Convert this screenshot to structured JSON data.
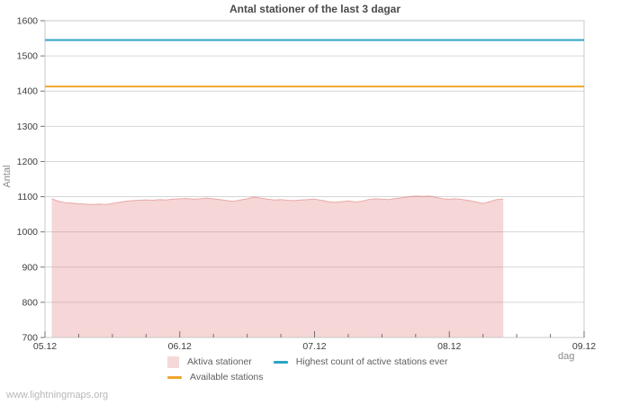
{
  "page": {
    "watermark": "www.lightningmaps.org"
  },
  "chart_data": {
    "type": "area",
    "title": "Antal stationer of the last 3 dagar",
    "xlabel": "dag",
    "ylabel": "Antal",
    "ylim": [
      700,
      1600
    ],
    "y_tick_step": 100,
    "xlim_days": [
      5,
      9
    ],
    "x_minor_tick_step_days": 0.25,
    "x_ticks": [
      {
        "day": 5,
        "label": "05.12"
      },
      {
        "day": 6,
        "label": "06.12"
      },
      {
        "day": 7,
        "label": "07.12"
      },
      {
        "day": 8,
        "label": "08.12"
      },
      {
        "day": 9,
        "label": "09.12"
      }
    ],
    "grid": "horizontal",
    "legend_position": "bottom-center",
    "colors": {
      "grid": "#d6d6d6",
      "border": "#c9c9c9",
      "tick": "#707070",
      "tick_label": "#3d3d3d",
      "area_fill": "rgba(224,118,118,0.30)",
      "area_stroke": "rgba(219,108,108,0.50)",
      "area_legend_swatch": "#f5d9d9",
      "highest_line": "#2aa6c5",
      "available_line": "#f0a62c"
    },
    "series": [
      {
        "name": "Aktiva stationer",
        "type": "area",
        "points": [
          [
            5.05,
            1094
          ],
          [
            5.1,
            1087
          ],
          [
            5.15,
            1083
          ],
          [
            5.2,
            1082
          ],
          [
            5.25,
            1080
          ],
          [
            5.3,
            1079
          ],
          [
            5.35,
            1078
          ],
          [
            5.4,
            1079
          ],
          [
            5.45,
            1078
          ],
          [
            5.5,
            1081
          ],
          [
            5.55,
            1084
          ],
          [
            5.6,
            1087
          ],
          [
            5.65,
            1089
          ],
          [
            5.7,
            1090
          ],
          [
            5.75,
            1091
          ],
          [
            5.8,
            1090
          ],
          [
            5.85,
            1092
          ],
          [
            5.9,
            1091
          ],
          [
            5.95,
            1093
          ],
          [
            6.0,
            1094
          ],
          [
            6.05,
            1095
          ],
          [
            6.1,
            1093
          ],
          [
            6.15,
            1094
          ],
          [
            6.2,
            1096
          ],
          [
            6.25,
            1094
          ],
          [
            6.3,
            1092
          ],
          [
            6.35,
            1089
          ],
          [
            6.4,
            1087
          ],
          [
            6.45,
            1091
          ],
          [
            6.5,
            1094
          ],
          [
            6.55,
            1099
          ],
          [
            6.6,
            1096
          ],
          [
            6.65,
            1093
          ],
          [
            6.7,
            1091
          ],
          [
            6.75,
            1092
          ],
          [
            6.8,
            1090
          ],
          [
            6.85,
            1089
          ],
          [
            6.9,
            1091
          ],
          [
            6.95,
            1092
          ],
          [
            7.0,
            1093
          ],
          [
            7.05,
            1090
          ],
          [
            7.1,
            1086
          ],
          [
            7.15,
            1084
          ],
          [
            7.2,
            1086
          ],
          [
            7.25,
            1088
          ],
          [
            7.3,
            1085
          ],
          [
            7.35,
            1087
          ],
          [
            7.4,
            1092
          ],
          [
            7.45,
            1094
          ],
          [
            7.5,
            1093
          ],
          [
            7.55,
            1092
          ],
          [
            7.6,
            1095
          ],
          [
            7.65,
            1097
          ],
          [
            7.7,
            1100
          ],
          [
            7.75,
            1102
          ],
          [
            7.8,
            1101
          ],
          [
            7.85,
            1102
          ],
          [
            7.9,
            1098
          ],
          [
            7.95,
            1094
          ],
          [
            8.0,
            1093
          ],
          [
            8.05,
            1094
          ],
          [
            8.1,
            1092
          ],
          [
            8.15,
            1089
          ],
          [
            8.2,
            1085
          ],
          [
            8.25,
            1081
          ],
          [
            8.3,
            1086
          ],
          [
            8.35,
            1092
          ],
          [
            8.4,
            1093
          ]
        ]
      },
      {
        "name": "Highest count of active stations ever",
        "type": "line",
        "value": 1545
      },
      {
        "name": "Available stations",
        "type": "line",
        "value": 1413
      }
    ]
  }
}
